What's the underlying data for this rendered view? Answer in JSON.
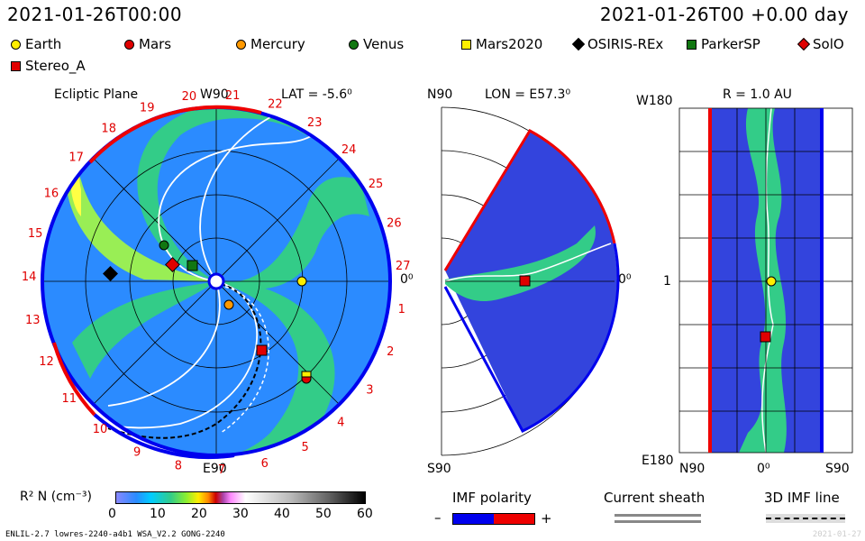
{
  "header": {
    "left_time": "2021-01-26T00:00",
    "right_time": "2021-01-26T00 +0.00 day"
  },
  "legend": [
    {
      "label": "Earth",
      "color": "#ffee00",
      "shape": "circle"
    },
    {
      "label": "Mars",
      "color": "#e00000",
      "shape": "circle"
    },
    {
      "label": "Mercury",
      "color": "#ff9900",
      "shape": "circle"
    },
    {
      "label": "Venus",
      "color": "#117711",
      "shape": "circle"
    },
    {
      "label": "Mars2020",
      "color": "#ffee00",
      "shape": "square"
    },
    {
      "label": "OSIRIS-REx",
      "color": "#000000",
      "shape": "diamond"
    },
    {
      "label": "ParkerSP",
      "color": "#117711",
      "shape": "square"
    },
    {
      "label": "SolO",
      "color": "#e00000",
      "shape": "diamond"
    },
    {
      "label": "Stereo_A",
      "color": "#e00000",
      "shape": "square"
    }
  ],
  "panel1": {
    "title": "Ecliptic Plane",
    "lat": "LAT = -5.6⁰",
    "top_label": "W90",
    "bottom_label": "E90",
    "right_label": "0⁰",
    "rotations": [
      "21",
      "22",
      "23",
      "24",
      "25",
      "26",
      "27",
      "1",
      "2",
      "3",
      "4",
      "5",
      "6",
      "7",
      "8",
      "9",
      "10",
      "11",
      "12",
      "13",
      "14",
      "15",
      "16",
      "17",
      "18",
      "19",
      "20"
    ]
  },
  "panel2": {
    "lon": "LON = E57.3⁰",
    "top_label": "N90",
    "bottom_label": "S90",
    "right_label": "0⁰"
  },
  "panel3": {
    "radius": "R = 1.0 AU",
    "top_label": "W180",
    "mid_label": "1",
    "bottom_label": "E180",
    "x_labels": [
      "N90",
      "0⁰",
      "S90"
    ]
  },
  "colorbar": {
    "label": "R² N (cm⁻³)",
    "ticks": [
      "0",
      "10",
      "20",
      "30",
      "40",
      "50",
      "60"
    ]
  },
  "imf": {
    "title": "IMF polarity",
    "minus": "–",
    "plus": "+",
    "neg_color": "#0000ee",
    "pos_color": "#ee0000"
  },
  "sheath": {
    "title": "Current sheath"
  },
  "imf3d": {
    "title": "3D IMF line"
  },
  "footer": {
    "left": "ENLIL-2.7 lowres-2240-a4b1 WSA_V2.2 GONG-2240",
    "right": "2021-01-27"
  }
}
